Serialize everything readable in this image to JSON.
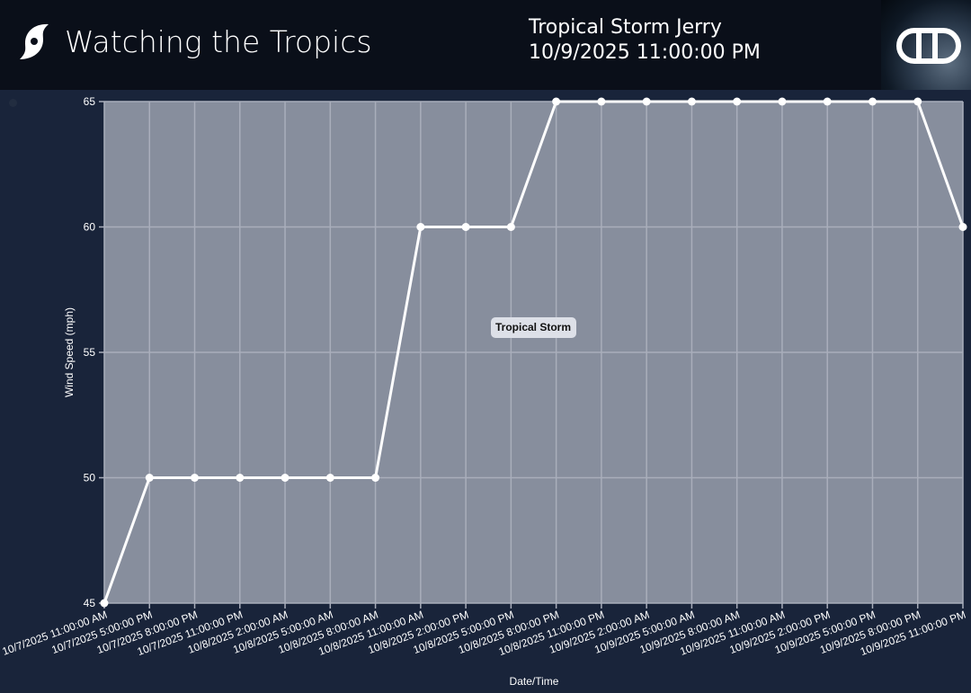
{
  "header": {
    "brand_title": "Watching the Tropics",
    "storm_name": "Tropical Storm Jerry",
    "storm_time": "10/9/2025 11:00:00 PM",
    "logo_text": "DD"
  },
  "colors": {
    "header_bg": "#0a0f19",
    "page_bg": "#19243a",
    "plot_bg": "#878e9d",
    "line": "#ffffff"
  },
  "chart_data": {
    "type": "line",
    "xlabel": "Date/Time",
    "ylabel": "Wind Speed (mph)",
    "ylim": [
      45,
      65
    ],
    "yticks": [
      45,
      50,
      55,
      60,
      65
    ],
    "grid": true,
    "annotation": "Tropical Storm",
    "categories": [
      "10/7/2025 11:00:00 AM",
      "10/7/2025 5:00:00 PM",
      "10/7/2025 8:00:00 PM",
      "10/7/2025 11:00:00 PM",
      "10/8/2025 2:00:00 AM",
      "10/8/2025 5:00:00 AM",
      "10/8/2025 8:00:00 AM",
      "10/8/2025 11:00:00 AM",
      "10/8/2025 2:00:00 PM",
      "10/8/2025 5:00:00 PM",
      "10/8/2025 8:00:00 PM",
      "10/8/2025 11:00:00 PM",
      "10/9/2025 2:00:00 AM",
      "10/9/2025 5:00:00 AM",
      "10/9/2025 8:00:00 AM",
      "10/9/2025 11:00:00 AM",
      "10/9/2025 2:00:00 PM",
      "10/9/2025 5:00:00 PM",
      "10/9/2025 8:00:00 PM",
      "10/9/2025 11:00:00 PM"
    ],
    "values": [
      45,
      50,
      50,
      50,
      50,
      50,
      50,
      60,
      60,
      60,
      65,
      65,
      65,
      65,
      65,
      65,
      65,
      65,
      65,
      60
    ]
  }
}
